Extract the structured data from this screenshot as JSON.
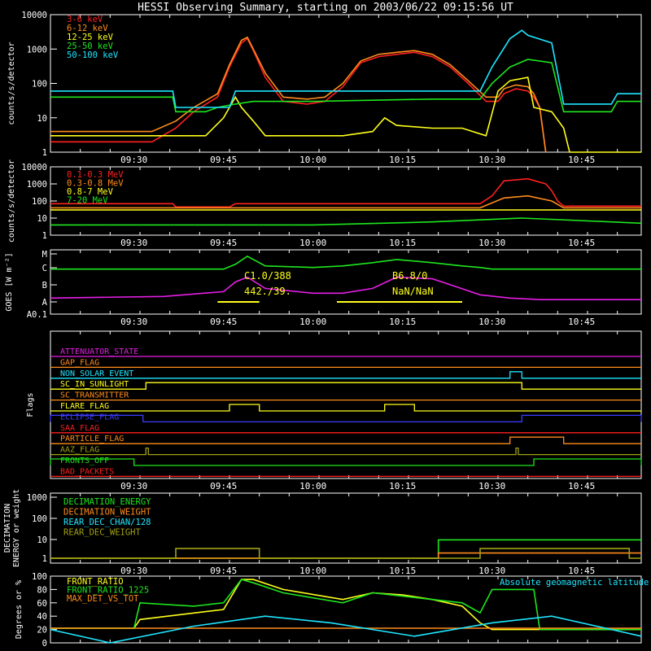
{
  "title": "HESSI Observing Summary, starting on 2003/06/22 09:15:56 UT",
  "time_ticks": [
    "09:30",
    "09:45",
    "10:00",
    "10:15",
    "10:30",
    "10:45"
  ],
  "chart_data": [
    {
      "type": "line",
      "ylabel": "counts/s/detector",
      "yscale": "log",
      "ylim": [
        1,
        10000
      ],
      "ytick_labels": [
        "1",
        "10",
        "100",
        "1000",
        "10000"
      ],
      "series": [
        {
          "name": "3-6 keV",
          "color": "#ff2020",
          "x": [
            "09:16",
            "09:33",
            "09:37",
            "09:40",
            "09:44",
            "09:46",
            "09:48",
            "09:49",
            "09:50",
            "09:52",
            "09:55",
            "09:59",
            "10:02",
            "10:05",
            "10:08",
            "10:11",
            "10:14",
            "10:17",
            "10:20",
            "10:23",
            "10:26",
            "10:29",
            "10:31",
            "10:32",
            "10:34",
            "10:36",
            "10:37",
            "10:38",
            "10:39"
          ],
          "values": [
            2,
            2,
            5,
            15,
            40,
            300,
            1500,
            2000,
            900,
            150,
            30,
            25,
            30,
            80,
            400,
            600,
            700,
            800,
            600,
            300,
            100,
            30,
            30,
            50,
            70,
            60,
            40,
            20,
            1
          ]
        },
        {
          "name": "6-12 keV",
          "color": "#ff8c1a",
          "x": [
            "09:16",
            "09:33",
            "09:37",
            "09:40",
            "09:44",
            "09:46",
            "09:48",
            "09:49",
            "09:50",
            "09:52",
            "09:55",
            "09:59",
            "10:02",
            "10:05",
            "10:08",
            "10:11",
            "10:14",
            "10:17",
            "10:20",
            "10:23",
            "10:26",
            "10:29",
            "10:31",
            "10:32",
            "10:34",
            "10:36",
            "10:37",
            "10:38",
            "10:39"
          ],
          "values": [
            4,
            4,
            8,
            20,
            50,
            350,
            1800,
            2200,
            1000,
            200,
            40,
            35,
            40,
            100,
            450,
            700,
            800,
            900,
            700,
            350,
            120,
            40,
            40,
            70,
            90,
            80,
            50,
            20,
            1
          ]
        },
        {
          "name": "12-25 keV",
          "color": "#ffff1a",
          "x": [
            "09:16",
            "09:37",
            "09:42",
            "09:45",
            "09:47",
            "09:48",
            "09:50",
            "09:52",
            "09:58",
            "10:05",
            "10:10",
            "10:12",
            "10:14",
            "10:20",
            "10:25",
            "10:29",
            "10:31",
            "10:33",
            "10:36",
            "10:37",
            "10:40",
            "10:42",
            "10:43",
            "10:55"
          ],
          "values": [
            3,
            3,
            3,
            10,
            40,
            20,
            8,
            3,
            3,
            3,
            4,
            10,
            6,
            5,
            5,
            3,
            60,
            120,
            150,
            20,
            15,
            5,
            1,
            1
          ]
        },
        {
          "name": "25-50 keV",
          "color": "#1ee61e",
          "x": [
            "09:16",
            "09:36.5",
            "09:37",
            "09:42",
            "09:44",
            "09:47",
            "09:50",
            "10:00",
            "10:20",
            "10:28",
            "10:30",
            "10:33",
            "10:36",
            "10:40",
            "10:42",
            "10:50",
            "10:51",
            "10:55"
          ],
          "values": [
            40,
            40,
            15,
            15,
            20,
            25,
            30,
            30,
            35,
            35,
            100,
            300,
            500,
            400,
            15,
            15,
            30,
            30
          ]
        },
        {
          "name": "50-100 keV",
          "color": "#1ee6ff",
          "x": [
            "09:16",
            "09:36.5",
            "09:37",
            "09:46",
            "09:47",
            "10:00",
            "10:28",
            "10:30",
            "10:33",
            "10:35",
            "10:36",
            "10:40",
            "10:42",
            "10:50",
            "10:51",
            "10:55"
          ],
          "values": [
            60,
            60,
            20,
            20,
            60,
            60,
            60,
            300,
            2000,
            3500,
            2500,
            1500,
            25,
            25,
            50,
            50
          ]
        }
      ]
    },
    {
      "type": "line",
      "ylabel": "counts/s/detector",
      "yscale": "log",
      "ylim": [
        1,
        10000
      ],
      "ytick_labels": [
        "1",
        "10",
        "100",
        "1000",
        "10000"
      ],
      "series": [
        {
          "name": "0.1-0.3 MeV",
          "color": "#ff2020",
          "x": [
            "09:16",
            "09:36.5",
            "09:37",
            "09:46",
            "09:47",
            "10:28",
            "10:30",
            "10:32",
            "10:36",
            "10:39",
            "10:40",
            "10:41",
            "10:42",
            "10:55"
          ],
          "values": [
            70,
            70,
            45,
            45,
            70,
            70,
            200,
            1500,
            2000,
            1000,
            400,
            100,
            50,
            50
          ]
        },
        {
          "name": "0.3-0.8 MeV",
          "color": "#ff8c1a",
          "x": [
            "09:16",
            "10:28",
            "10:32",
            "10:36",
            "10:40",
            "10:42",
            "10:55"
          ],
          "values": [
            40,
            40,
            150,
            200,
            100,
            40,
            40
          ]
        },
        {
          "name": "0.8-7 MeV",
          "color": "#ffff1a",
          "x": [
            "09:16",
            "10:55"
          ],
          "values": [
            30,
            30
          ]
        },
        {
          "name": "7-20 MeV",
          "color": "#1ee61e",
          "x": [
            "09:16",
            "09:40",
            "10:00",
            "10:20",
            "10:35",
            "10:55"
          ],
          "values": [
            4,
            4,
            4,
            6,
            10,
            5
          ]
        }
      ]
    },
    {
      "type": "line",
      "ylabel": "GOES [W m⁻²]",
      "ytick_labels": [
        "A0.1",
        "A",
        "B",
        "C",
        "M"
      ],
      "annotations": [
        "C1.0/388",
        "442./39.",
        "B6.8/0",
        "NaN/NaN"
      ],
      "series": [
        {
          "color": "#1ee61e",
          "x": [
            "09:16",
            "09:45",
            "09:47",
            "09:49",
            "09:52",
            "10:00",
            "10:05",
            "10:10",
            "10:14",
            "10:20",
            "10:25",
            "10:28",
            "10:30",
            "10:55"
          ],
          "values": [
            2.8,
            2.8,
            3.1,
            3.6,
            3.0,
            2.9,
            3.0,
            3.2,
            3.4,
            3.2,
            3.0,
            2.9,
            2.8,
            2.8
          ]
        },
        {
          "color": "#e61ee6",
          "x": [
            "09:16",
            "09:35",
            "09:45",
            "09:47",
            "09:49",
            "09:52",
            "10:00",
            "10:05",
            "10:10",
            "10:14",
            "10:20",
            "10:24",
            "10:28",
            "10:33",
            "10:38",
            "10:55"
          ],
          "values": [
            1.0,
            1.1,
            1.4,
            2.0,
            2.3,
            1.6,
            1.3,
            1.3,
            1.6,
            2.3,
            2.2,
            1.7,
            1.2,
            1.0,
            0.9,
            0.9
          ]
        }
      ],
      "yellow_bars": [
        [
          "09:44",
          "09:51"
        ],
        [
          "10:04",
          "10:25"
        ]
      ]
    },
    {
      "type": "step",
      "ylabel": "Flags",
      "flags": [
        {
          "name": "ATTENUATOR_STATE",
          "color": "#e61ee6",
          "steps": []
        },
        {
          "name": "GAP_FLAG",
          "color": "#ff8c1a",
          "steps": []
        },
        {
          "name": "NON_SOLAR_EVENT",
          "color": "#1ee6ff",
          "steps": [
            [
              "10:33",
              "10:35"
            ]
          ]
        },
        {
          "name": "SC_IN_SUNLIGHT",
          "color": "#ffff1a",
          "steps": [
            [
              "09:32",
              "10:35"
            ]
          ]
        },
        {
          "name": "SC_TRANSMITTER",
          "color": "#ff8c1a",
          "steps": []
        },
        {
          "name": "FLARE_FLAG",
          "color": "#ffff1a",
          "steps": [
            [
              "09:46",
              "09:51"
            ],
            [
              "10:12",
              "10:17"
            ]
          ]
        },
        {
          "name": "ECLIPSE_FLAG",
          "color": "#3c3cff",
          "steps": [
            [
              "09:16",
              "09:31.5"
            ],
            [
              "10:35",
              "10:55"
            ]
          ]
        },
        {
          "name": "SAA_FLAG",
          "color": "#ff2020",
          "steps": []
        },
        {
          "name": "PARTICLE_FLAG",
          "color": "#ff8c1a",
          "steps": [
            [
              "10:33",
              "10:42"
            ]
          ]
        },
        {
          "name": "AAZ_FLAG",
          "color": "#a0a014",
          "steps": [
            [
              "09:32",
              "09:32.4"
            ],
            [
              "10:34",
              "10:34.4"
            ]
          ]
        },
        {
          "name": "FRONTS_OFF",
          "color": "#1ee61e",
          "steps": [
            [
              "09:16",
              "09:30"
            ],
            [
              "10:37",
              "10:55"
            ]
          ]
        },
        {
          "name": "BAD_PACKETS",
          "color": "#ff2020",
          "steps": []
        }
      ]
    },
    {
      "type": "step",
      "ylabel": "DECIMATION ENERGY or weight",
      "yscale": "log",
      "ytick_labels": [
        "1",
        "10",
        "100",
        "1000"
      ],
      "series": [
        {
          "name": "DECIMATION_ENERGY",
          "color": "#1ee61e",
          "x": [
            "09:16",
            "10:21",
            "10:21",
            "10:55"
          ],
          "values": [
            1,
            1,
            8,
            8
          ]
        },
        {
          "name": "DECIMATION_WEIGHT",
          "color": "#ff8c1a",
          "x": [
            "09:16",
            "10:21",
            "10:21",
            "10:55"
          ],
          "values": [
            1,
            1,
            1.8,
            1.8
          ]
        },
        {
          "name": "REAR_DEC_CHAN/128",
          "color": "#1ee6ff",
          "x": [],
          "values": []
        },
        {
          "name": "REAR_DEC_WEIGHT",
          "color": "#a0a014",
          "x": [
            "09:16",
            "09:37",
            "09:37",
            "09:51",
            "09:51",
            "10:28",
            "10:28",
            "10:53",
            "10:53",
            "10:55"
          ],
          "values": [
            1,
            1,
            3,
            3,
            1,
            1,
            3,
            3,
            1,
            1
          ]
        }
      ]
    },
    {
      "type": "line",
      "ylabel": "Degrees or %",
      "ylim": [
        0,
        100
      ],
      "ytick_labels": [
        "0",
        "20",
        "40",
        "60",
        "80",
        "100"
      ],
      "series": [
        {
          "name": "FRONT_RATIO",
          "color": "#ffff1a",
          "x": [
            "09:16",
            "09:30",
            "09:31",
            "09:45",
            "09:48",
            "09:50",
            "09:55",
            "10:05",
            "10:10",
            "10:15",
            "10:20",
            "10:25",
            "10:28",
            "10:30",
            "10:55"
          ],
          "values": [
            22,
            22,
            35,
            50,
            95,
            95,
            80,
            65,
            75,
            72,
            65,
            55,
            30,
            20,
            20
          ]
        },
        {
          "name": "FRONT_RATIO_1225",
          "color": "#1ee61e",
          "x": [
            "09:16",
            "09:30",
            "09:31",
            "09:40",
            "09:45",
            "09:48",
            "09:50",
            "09:55",
            "10:05",
            "10:10",
            "10:15",
            "10:20",
            "10:25",
            "10:28",
            "10:30",
            "10:37",
            "10:38",
            "10:55"
          ],
          "values": [
            22,
            22,
            60,
            55,
            60,
            95,
            90,
            75,
            60,
            75,
            70,
            65,
            60,
            45,
            80,
            80,
            20,
            20
          ]
        },
        {
          "name": "MAX_DET_VS_TOT",
          "color": "#ff8c1a",
          "x": [
            "09:16",
            "10:55"
          ],
          "values": [
            22,
            22
          ]
        },
        {
          "name": "Absolute geomagnetic latitude",
          "color": "#1ee6ff",
          "x": [
            "09:16",
            "09:26",
            "09:40",
            "09:52",
            "10:03",
            "10:17",
            "10:30",
            "10:40",
            "10:55"
          ],
          "values": [
            20,
            0,
            25,
            40,
            30,
            10,
            30,
            40,
            10
          ]
        }
      ]
    }
  ]
}
